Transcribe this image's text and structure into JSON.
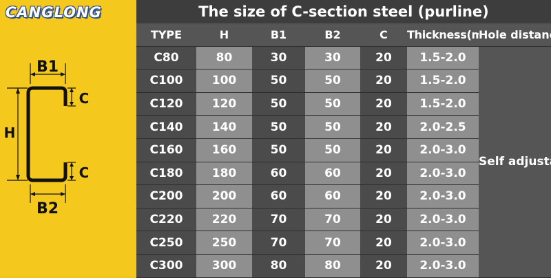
{
  "brand": {
    "logo_text": "CANGLONG"
  },
  "diagram": {
    "labels": {
      "b1": "B1",
      "b2": "B2",
      "h": "H",
      "c_top": "C",
      "c_bottom": "C"
    }
  },
  "table": {
    "title": "The size of C-section steel (purline)",
    "headers": [
      "TYPE",
      "H",
      "B1",
      "B2",
      "C",
      "Thickness(mm)",
      "Hole distance"
    ],
    "hole_distance_note": "Self adjustable",
    "rows": [
      [
        "C80",
        "80",
        "30",
        "30",
        "20",
        "1.5-2.0"
      ],
      [
        "C100",
        "100",
        "50",
        "50",
        "20",
        "1.5-2.0"
      ],
      [
        "C120",
        "120",
        "50",
        "50",
        "20",
        "1.5-2.0"
      ],
      [
        "C140",
        "140",
        "50",
        "50",
        "20",
        "2.0-2.5"
      ],
      [
        "C160",
        "160",
        "50",
        "50",
        "20",
        "2.0-3.0"
      ],
      [
        "C180",
        "180",
        "60",
        "60",
        "20",
        "2.0-3.0"
      ],
      [
        "C200",
        "200",
        "60",
        "60",
        "20",
        "2.0-3.0"
      ],
      [
        "C220",
        "220",
        "70",
        "70",
        "20",
        "2.0-3.0"
      ],
      [
        "C250",
        "250",
        "70",
        "70",
        "20",
        "2.0-3.0"
      ],
      [
        "C300",
        "300",
        "80",
        "80",
        "20",
        "2.0-3.0"
      ]
    ]
  },
  "colors": {
    "yellow_panel": "#f4c81c",
    "table_dark": "#4b4b4b",
    "table_light": "#8f8f8f",
    "logo_blue": "#2c4f8f"
  }
}
